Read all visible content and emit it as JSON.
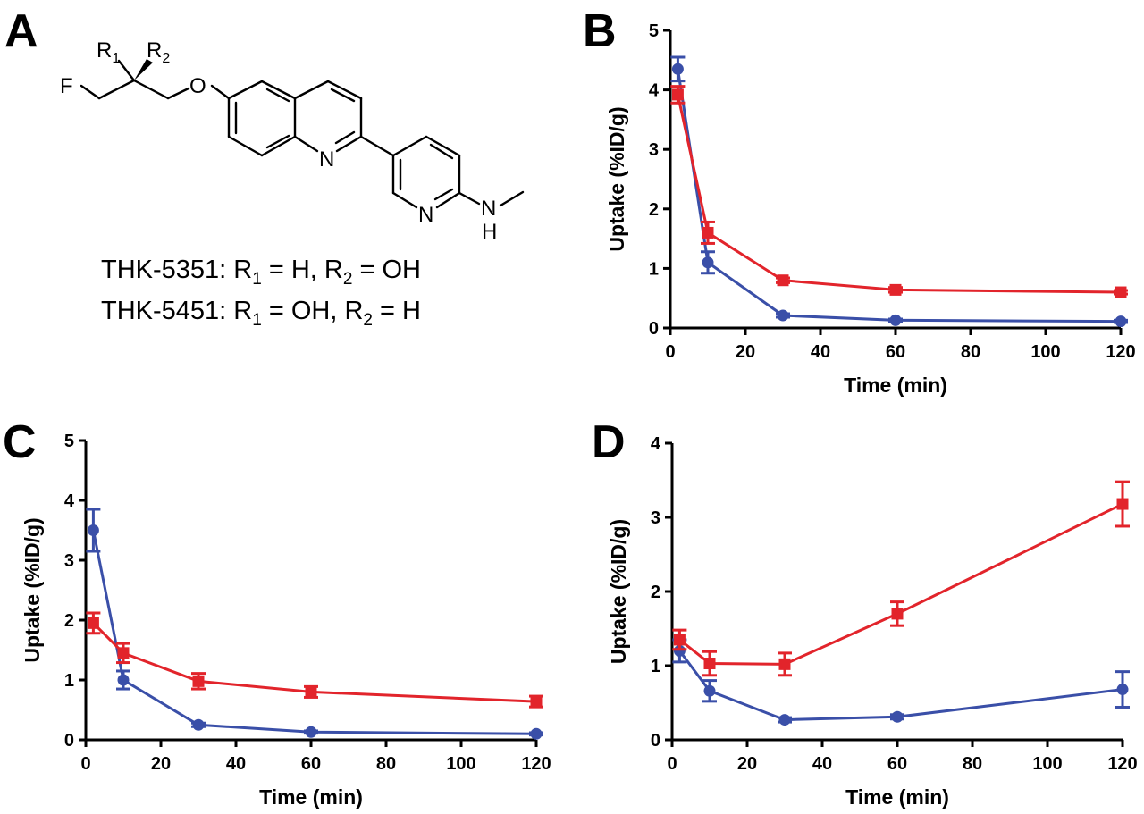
{
  "structure": {
    "panel_letter": "A",
    "atoms": {
      "f": "F",
      "o": "O",
      "n_quinoline": "N",
      "n_pyridine": "N",
      "nh_n": "N",
      "nh_h": "H",
      "r1_main": "R",
      "r1_sub": "1",
      "r2_main": "R",
      "r2_sub": "2"
    },
    "compounds": [
      {
        "prefix": "THK-5351: R",
        "s1": "1",
        "mid": " = H, R",
        "s2": "2",
        "suffix": " = OH"
      },
      {
        "prefix": "THK-5451: R",
        "s1": "1",
        "mid": " = OH, R",
        "s2": "2",
        "suffix": " = H"
      }
    ]
  },
  "colors": {
    "blue_series": "#3a4fa8",
    "red_series": "#e2242b"
  },
  "chart_data": [
    {
      "panel": "B",
      "type": "line",
      "xlabel": "Time (min)",
      "ylabel": "Uptake (%ID/g)",
      "xlim": [
        0,
        120
      ],
      "ylim": [
        0,
        5
      ],
      "xticks": [
        0,
        20,
        40,
        60,
        80,
        100,
        120
      ],
      "yticks": [
        0,
        1,
        2,
        3,
        4,
        5
      ],
      "grid": false,
      "series": [
        {
          "color": "#3a4fa8",
          "marker": "circle",
          "x": [
            2,
            10,
            30,
            60,
            120
          ],
          "y": [
            4.35,
            1.1,
            0.21,
            0.13,
            0.11
          ],
          "err": [
            0.2,
            0.18,
            0.03,
            0.02,
            0.02
          ]
        },
        {
          "color": "#e2242b",
          "marker": "square",
          "x": [
            2,
            10,
            30,
            60,
            120
          ],
          "y": [
            3.92,
            1.6,
            0.8,
            0.64,
            0.6
          ],
          "err": [
            0.14,
            0.18,
            0.04,
            0.04,
            0.03
          ]
        }
      ]
    },
    {
      "panel": "C",
      "type": "line",
      "xlabel": "Time (min)",
      "ylabel": "Uptake (%ID/g)",
      "xlim": [
        0,
        120
      ],
      "ylim": [
        0,
        5
      ],
      "xticks": [
        0,
        20,
        40,
        60,
        80,
        100,
        120
      ],
      "yticks": [
        0,
        1,
        2,
        3,
        4,
        5
      ],
      "grid": false,
      "series": [
        {
          "color": "#3a4fa8",
          "marker": "circle",
          "x": [
            2,
            10,
            30,
            60,
            120
          ],
          "y": [
            3.5,
            1.0,
            0.25,
            0.13,
            0.1
          ],
          "err": [
            0.35,
            0.15,
            0.03,
            0.02,
            0.02
          ]
        },
        {
          "color": "#e2242b",
          "marker": "square",
          "x": [
            2,
            10,
            30,
            60,
            120
          ],
          "y": [
            1.95,
            1.45,
            0.98,
            0.8,
            0.64
          ],
          "err": [
            0.17,
            0.16,
            0.13,
            0.09,
            0.09
          ]
        }
      ]
    },
    {
      "panel": "D",
      "type": "line",
      "xlabel": "Time (min)",
      "ylabel": "Uptake (%ID/g)",
      "xlim": [
        0,
        120
      ],
      "ylim": [
        0,
        4
      ],
      "xticks": [
        0,
        20,
        40,
        60,
        80,
        100,
        120
      ],
      "yticks": [
        0,
        1,
        2,
        3,
        4
      ],
      "grid": false,
      "series": [
        {
          "color": "#3a4fa8",
          "marker": "circle",
          "x": [
            2,
            10,
            30,
            60,
            120
          ],
          "y": [
            1.2,
            0.66,
            0.27,
            0.31,
            0.68
          ],
          "err": [
            0.15,
            0.14,
            0.03,
            0.03,
            0.24
          ]
        },
        {
          "color": "#e2242b",
          "marker": "square",
          "x": [
            2,
            10,
            30,
            60,
            120
          ],
          "y": [
            1.35,
            1.03,
            1.02,
            1.7,
            3.18
          ],
          "err": [
            0.13,
            0.16,
            0.15,
            0.16,
            0.3
          ]
        }
      ]
    }
  ]
}
